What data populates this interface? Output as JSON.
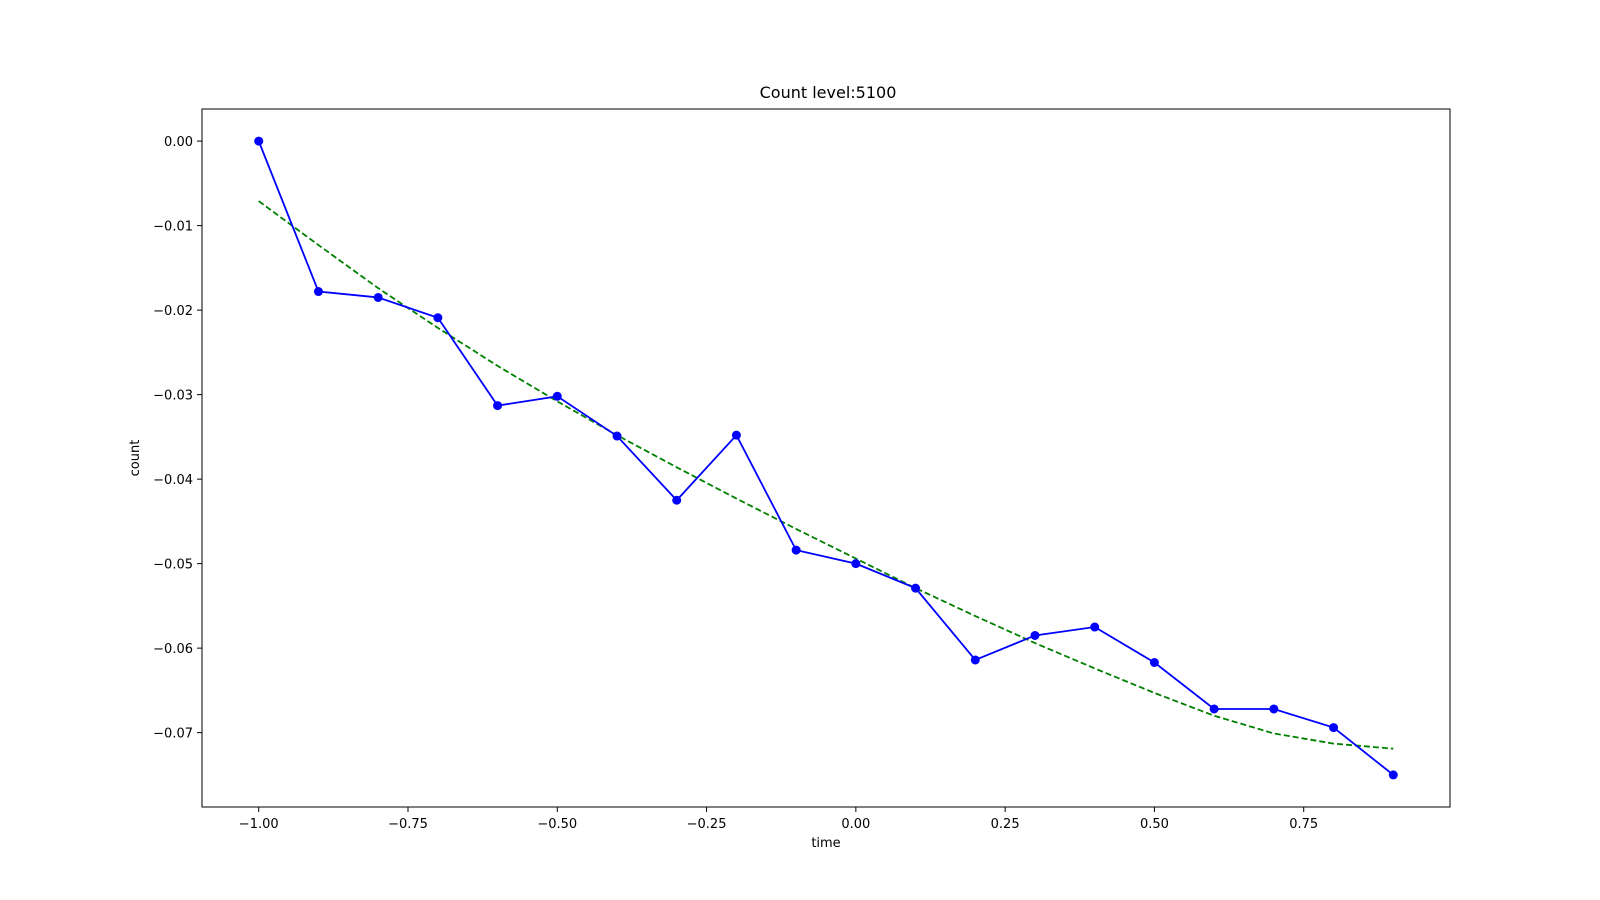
{
  "chart_data": {
    "type": "line",
    "title": "Count level:5100",
    "xlabel": "time",
    "ylabel": "count",
    "xlim": [
      -1.095,
      0.995
    ],
    "ylim": [
      -0.0788,
      0.0038
    ],
    "x_ticks": [
      -1.0,
      -0.75,
      -0.5,
      -0.25,
      0.0,
      0.25,
      0.5,
      0.75
    ],
    "x_tick_labels": [
      "−1.00",
      "−0.75",
      "−0.50",
      "−0.25",
      "0.00",
      "0.25",
      "0.50",
      "0.75"
    ],
    "y_ticks": [
      0.0,
      -0.01,
      -0.02,
      -0.03,
      -0.04,
      -0.05,
      -0.06,
      -0.07
    ],
    "y_tick_labels": [
      "0.00",
      "−0.01",
      "−0.02",
      "−0.03",
      "−0.04",
      "−0.05",
      "−0.06",
      "−0.07"
    ],
    "grid": false,
    "series": [
      {
        "style": "solid-with-markers",
        "color": "#0000ff",
        "x": [
          -1.0,
          -0.9,
          -0.8,
          -0.7,
          -0.6,
          -0.5,
          -0.4,
          -0.3,
          -0.2,
          -0.1,
          0.0,
          0.1,
          0.2,
          0.3,
          0.4,
          0.5,
          0.6,
          0.7,
          0.8,
          0.9
        ],
        "y": [
          0.0,
          -0.0178,
          -0.0185,
          -0.0209,
          -0.0313,
          -0.0302,
          -0.0349,
          -0.0425,
          -0.0348,
          -0.0484,
          -0.05,
          -0.0529,
          -0.0614,
          -0.0585,
          -0.0575,
          -0.0617,
          -0.0672,
          -0.0672,
          -0.0694,
          -0.075
        ]
      },
      {
        "style": "dashed",
        "color": "#008000",
        "x": [
          -1.0,
          -0.9,
          -0.8,
          -0.7,
          -0.6,
          -0.5,
          -0.4,
          -0.3,
          -0.2,
          -0.1,
          0.0,
          0.1,
          0.2,
          0.3,
          0.4,
          0.5,
          0.6,
          0.7,
          0.8,
          0.9
        ],
        "y": [
          -0.0071,
          -0.0123,
          -0.0174,
          -0.0221,
          -0.0266,
          -0.0308,
          -0.0348,
          -0.0386,
          -0.0423,
          -0.0459,
          -0.0494,
          -0.0529,
          -0.0562,
          -0.0594,
          -0.0624,
          -0.0653,
          -0.068,
          -0.0701,
          -0.0713,
          -0.0719
        ]
      }
    ]
  }
}
